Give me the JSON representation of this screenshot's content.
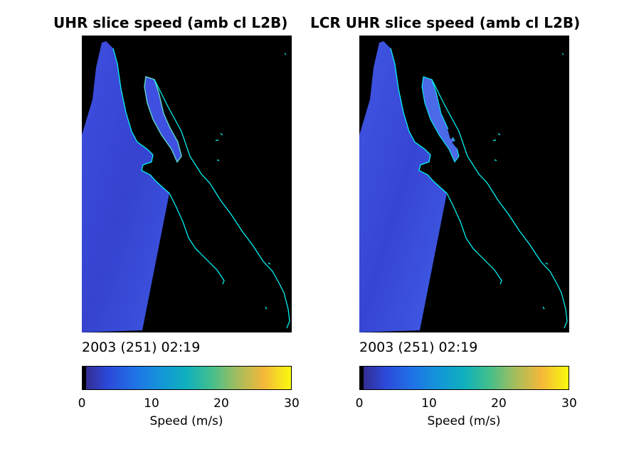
{
  "chart_data": [
    {
      "type": "heatmap",
      "title": "UHR slice speed (amb cl L2B)",
      "timestamp": "2003 (251) 02:19",
      "colorbar": {
        "label": "Speed (m/s)",
        "range": [
          0,
          30
        ],
        "ticks": [
          "0",
          "10",
          "20",
          "30"
        ],
        "colormap": "parula"
      },
      "dominant_speed_ms": 5
    },
    {
      "type": "heatmap",
      "title": "UHR slice speed (amb cl L2B)",
      "title_prefix": "LCR",
      "timestamp": "2003 (251) 02:19",
      "colorbar": {
        "label": "Speed (m/s)",
        "range": [
          0,
          30
        ],
        "ticks": [
          "0",
          "10",
          "20",
          "30"
        ],
        "colormap": "parula"
      },
      "dominant_speed_ms": 5
    }
  ],
  "colors": {
    "background": "#000000",
    "coastline": "#00ffff",
    "swath": "#3b49d8",
    "nodata_band": "#000000"
  }
}
